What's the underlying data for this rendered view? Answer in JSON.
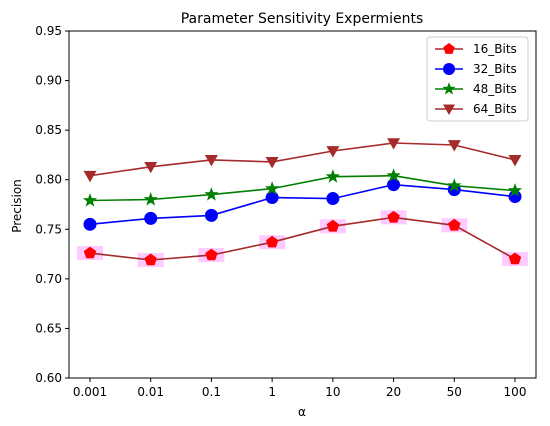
{
  "chart_data": {
    "type": "line",
    "title": "Parameter Sensitivity Expermients",
    "xlabel": "α",
    "ylabel": "Precision",
    "categories": [
      "0.001",
      "0.01",
      "0.1",
      "1",
      "10",
      "20",
      "50",
      "100"
    ],
    "ylim": [
      0.6,
      0.95
    ],
    "yticks": [
      "0.60",
      "0.65",
      "0.70",
      "0.75",
      "0.80",
      "0.85",
      "0.90",
      "0.95"
    ],
    "grid": false,
    "legend_position": "top-right",
    "series": [
      {
        "name": "16_Bits",
        "color": "#ff0000",
        "line_color": "#a52a2a",
        "marker": "pentagon",
        "highlight": "#ffb3ff",
        "values": [
          0.726,
          0.719,
          0.724,
          0.737,
          0.753,
          0.762,
          0.754,
          0.72
        ]
      },
      {
        "name": "32_Bits",
        "color": "#0000ff",
        "line_color": "#0000ff",
        "marker": "circle",
        "values": [
          0.755,
          0.761,
          0.764,
          0.782,
          0.781,
          0.795,
          0.79,
          0.783
        ]
      },
      {
        "name": "48_Bits",
        "color": "#008000",
        "line_color": "#008000",
        "marker": "star",
        "values": [
          0.779,
          0.78,
          0.785,
          0.791,
          0.803,
          0.804,
          0.794,
          0.789
        ]
      },
      {
        "name": "64_Bits",
        "color": "#a52a2a",
        "line_color": "#a52a2a",
        "marker": "triangle-down",
        "values": [
          0.804,
          0.813,
          0.82,
          0.818,
          0.829,
          0.837,
          0.835,
          0.82
        ]
      }
    ]
  }
}
